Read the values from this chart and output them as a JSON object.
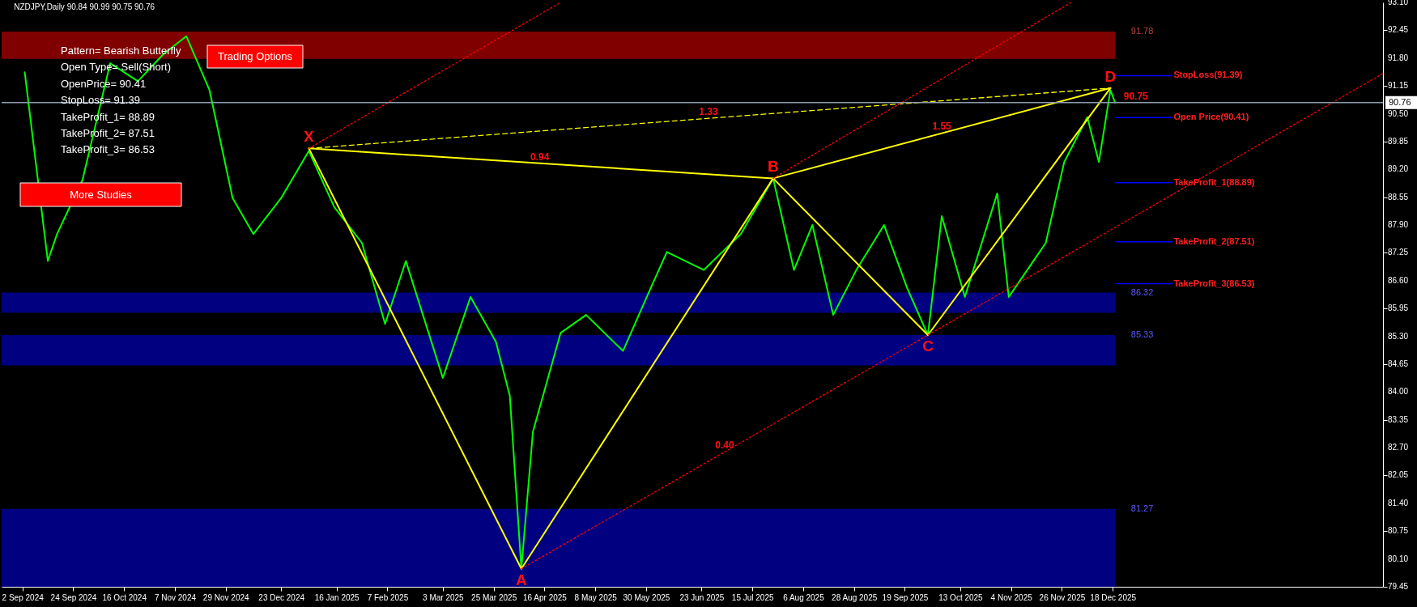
{
  "chart_data": {
    "type": "line",
    "title": "NZDJPY,Daily  90.84 90.99 90.75 90.76",
    "x": [
      "2024-09-03",
      "2024-09-13",
      "2024-09-17",
      "2024-09-28",
      "2024-10-10",
      "2024-10-22",
      "2024-11-02",
      "2024-11-12",
      "2024-11-22",
      "2024-12-02",
      "2024-12-11",
      "2024-12-23",
      "2025-01-04",
      "2025-01-15",
      "2025-01-27",
      "2025-02-06",
      "2025-02-15",
      "2025-03-03",
      "2025-03-15",
      "2025-03-26",
      "2025-04-01",
      "2025-04-06",
      "2025-04-11",
      "2025-04-23",
      "2025-05-04",
      "2025-05-20",
      "2025-06-01",
      "2025-06-08",
      "2025-06-24",
      "2025-07-10",
      "2025-07-24",
      "2025-08-02",
      "2025-08-10",
      "2025-08-19",
      "2025-08-29",
      "2025-09-10",
      "2025-09-20",
      "2025-09-29",
      "2025-10-05",
      "2025-10-15",
      "2025-10-29",
      "2025-11-03",
      "2025-11-19",
      "2025-11-27",
      "2025-12-07",
      "2025-12-12",
      "2025-12-17",
      "2025-12-19"
    ],
    "series": [
      {
        "color": "#00ff00",
        "values": [
          91.47,
          87.06,
          87.69,
          88.95,
          91.68,
          91.26,
          91.89,
          92.31,
          91.05,
          88.53,
          87.69,
          88.53,
          89.63,
          88.32,
          87.48,
          85.59,
          87.06,
          84.33,
          86.22,
          85.17,
          83.91,
          79.87,
          83.07,
          85.38,
          85.8,
          84.96,
          86.43,
          87.27,
          86.85,
          87.69,
          88.99,
          86.85,
          87.9,
          85.8,
          86.85,
          87.9,
          86.43,
          85.33,
          88.11,
          86.22,
          88.64,
          86.22,
          87.48,
          89.37,
          90.42,
          89.37,
          91.05,
          90.76
        ]
      },
      {
        "color": "#ffff00",
        "x": [
          "2025-01-04",
          "2025-04-06",
          "2025-07-24",
          "2025-09-29",
          "2025-12-17"
        ],
        "values": [
          89.69,
          79.87,
          88.99,
          85.33,
          91.1
        ]
      },
      {
        "color": "#ffff00",
        "x": [
          "2025-01-04",
          "2025-07-24",
          "2025-12-17"
        ],
        "values": [
          89.69,
          88.99,
          91.1
        ]
      },
      {
        "color": "#ffff00",
        "x": [
          "2025-01-04",
          "2025-12-17"
        ],
        "values": [
          89.69,
          91.1
        ],
        "line_style": "dashed"
      },
      {
        "color": "#ff0000",
        "x": [
          "2025-04-06",
          "2025-09-29",
          "2026-04-14"
        ],
        "values": [
          79.87,
          85.33,
          91.44
        ],
        "line_style": "dotted"
      },
      {
        "color": "#ff0000",
        "x": [
          "2025-01-04",
          "2025-04-23"
        ],
        "values": [
          89.69,
          93.1
        ],
        "line_style": "dotted"
      },
      {
        "color": "#ff0000",
        "x": [
          "2025-07-24",
          "2025-11-30"
        ],
        "values": [
          88.99,
          93.1
        ],
        "line_style": "dotted"
      }
    ],
    "xlim": [
      "2024-08-24",
      "2026-04-14"
    ],
    "xticks": [
      {
        "value": "2024-09-02",
        "label": "2 Sep 2024"
      },
      {
        "value": "2024-09-24",
        "label": "24 Sep 2024"
      },
      {
        "value": "2024-10-16",
        "label": "16 Oct 2024"
      },
      {
        "value": "2024-11-07",
        "label": "7 Nov 2024"
      },
      {
        "value": "2024-11-29",
        "label": "29 Nov 2024"
      },
      {
        "value": "2024-12-23",
        "label": "23 Dec 2024"
      },
      {
        "value": "2025-01-16",
        "label": "16 Jan 2025"
      },
      {
        "value": "2025-02-07",
        "label": "7 Feb 2025"
      },
      {
        "value": "2025-03-03",
        "label": "3 Mar 2025"
      },
      {
        "value": "2025-03-25",
        "label": "25 Mar 2025"
      },
      {
        "value": "2025-04-16",
        "label": "16 Apr 2025"
      },
      {
        "value": "2025-05-08",
        "label": "8 May 2025"
      },
      {
        "value": "2025-05-30",
        "label": "30 May 2025"
      },
      {
        "value": "2025-06-23",
        "label": "23 Jun 2025"
      },
      {
        "value": "2025-07-15",
        "label": "15 Jul 2025"
      },
      {
        "value": "2025-08-06",
        "label": "6 Aug 2025"
      },
      {
        "value": "2025-08-28",
        "label": "28 Aug 2025"
      },
      {
        "value": "2025-09-19",
        "label": "19 Sep 2025"
      },
      {
        "value": "2025-10-13",
        "label": "13 Oct 2025"
      },
      {
        "value": "2025-11-04",
        "label": "4 Nov 2025"
      },
      {
        "value": "2025-11-26",
        "label": "26 Nov 2025"
      },
      {
        "value": "2025-12-18",
        "label": "18 Dec 2025"
      }
    ],
    "ylim": [
      79.45,
      93.1
    ],
    "yticks": [
      {
        "value": 79.45,
        "label": "79.45"
      },
      {
        "value": 80.1,
        "label": "80.10"
      },
      {
        "value": 80.75,
        "label": "80.75"
      },
      {
        "value": 81.4,
        "label": "81.40"
      },
      {
        "value": 82.05,
        "label": "82.05"
      },
      {
        "value": 82.7,
        "label": "82.70"
      },
      {
        "value": 83.35,
        "label": "83.35"
      },
      {
        "value": 84,
        "label": "84.00"
      },
      {
        "value": 84.65,
        "label": "84.65"
      },
      {
        "value": 85.3,
        "label": "85.30"
      },
      {
        "value": 85.95,
        "label": "85.95"
      },
      {
        "value": 86.6,
        "label": "86.60"
      },
      {
        "value": 87.25,
        "label": "87.25"
      },
      {
        "value": 87.9,
        "label": "87.90"
      },
      {
        "value": 88.55,
        "label": "88.55"
      },
      {
        "value": 89.2,
        "label": "89.20"
      },
      {
        "value": 89.85,
        "label": "89.85"
      },
      {
        "value": 90.5,
        "label": "90.50"
      },
      {
        "value": 91.15,
        "label": "91.15"
      },
      {
        "value": 91.8,
        "label": "91.80"
      },
      {
        "value": 92.45,
        "label": "92.45"
      },
      {
        "value": 93.1,
        "label": "93.10"
      }
    ],
    "ref_lines": [
      {
        "axis": "y",
        "value": 90.76,
        "label": "90.76",
        "color": "#8c9cad"
      },
      {
        "axis": "y",
        "value": 91.39,
        "label": "StopLoss(91.39)",
        "color": "#0000ff"
      },
      {
        "axis": "y",
        "value": 90.41,
        "label": "Open Price(90.41)",
        "color": "#0000ff"
      },
      {
        "axis": "y",
        "value": 88.89,
        "label": "TakeProfit_1(88.89)",
        "color": "#0000ff"
      },
      {
        "axis": "y",
        "value": 87.51,
        "label": "TakeProfit_2(87.51)",
        "color": "#0000ff"
      },
      {
        "axis": "y",
        "value": 86.53,
        "label": "TakeProfit_3(86.53)",
        "color": "#0000ff"
      }
    ],
    "bands": [
      {
        "axis": "y",
        "from": 91.78,
        "to": 92.42,
        "label": "91.78",
        "color": "#800000"
      },
      {
        "axis": "y",
        "from": 85.85,
        "to": 86.32,
        "label": "86.32",
        "color": "#000080"
      },
      {
        "axis": "y",
        "from": 84.62,
        "to": 85.33,
        "label": "85.33",
        "color": "#000080"
      },
      {
        "axis": "y",
        "from": 79.45,
        "to": 81.27,
        "label": "81.27",
        "color": "#000080"
      }
    ],
    "annotations": [
      "Pattern= Bearish Butterfly",
      "Open Type= Sell(Short)",
      "OpenPrice= 90.41",
      "StopLoss= 91.39",
      "TakeProfit_1= 88.89",
      "TakeProfit_2= 87.51",
      "TakeProfit_3= 86.53",
      "Trading Options",
      "More Studies",
      {
        "text": "X",
        "x": "2025-01-04",
        "y": 89.69
      },
      {
        "text": "A",
        "x": "2025-04-06",
        "y": 79.87
      },
      {
        "text": "B",
        "x": "2025-07-24",
        "y": 88.99
      },
      {
        "text": "C",
        "x": "2025-09-29",
        "y": 85.33
      },
      {
        "text": "D",
        "x": "2025-12-17",
        "y": 91.1
      },
      {
        "text": "0.94",
        "x": "2025-04-14",
        "y": 89.34
      },
      {
        "text": "1.33",
        "x": "2025-06-26",
        "y": 90.4
      },
      {
        "text": "1.55",
        "x": "2025-10-05",
        "y": 90.05
      },
      {
        "text": "0.40",
        "x": "2025-07-03",
        "y": 82.6
      },
      {
        "text": "90.75",
        "x": "2025-12-28",
        "y": 90.75
      }
    ],
    "grid": false
  }
}
